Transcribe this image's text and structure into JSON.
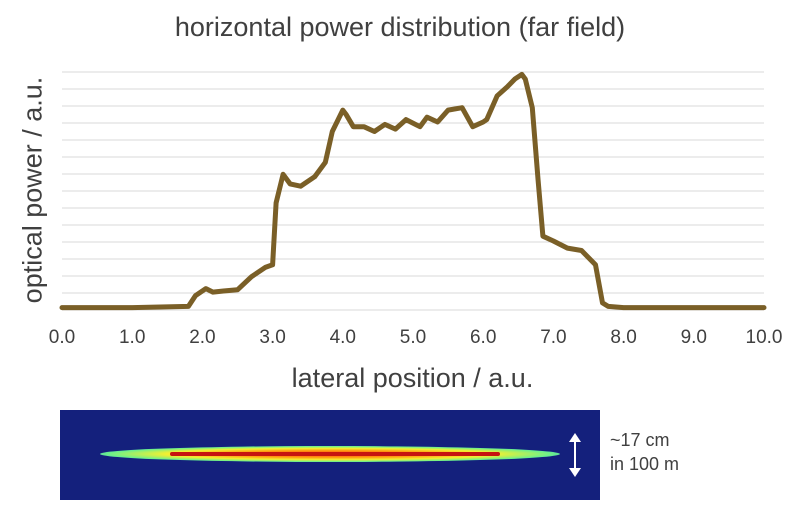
{
  "chart_data": {
    "type": "line",
    "title": "horizontal power distribution (far field)",
    "xlabel": "lateral position / a.u.",
    "ylabel": "optical power / a.u.",
    "xlim": [
      0,
      10
    ],
    "ylim": [
      0,
      100
    ],
    "xticks": [
      "0.0",
      "1.0",
      "2.0",
      "3.0",
      "4.0",
      "5.0",
      "6.0",
      "7.0",
      "8.0",
      "9.0",
      "10.0"
    ],
    "grid": true,
    "line_color": "#7a5f27",
    "series": [
      {
        "x": [
          0.0,
          1.0,
          1.8,
          1.9,
          2.05,
          2.15,
          2.3,
          2.5,
          2.7,
          2.9,
          3.0,
          3.05,
          3.15,
          3.25,
          3.4,
          3.6,
          3.75,
          3.85,
          4.0,
          4.05,
          4.15,
          4.3,
          4.45,
          4.6,
          4.75,
          4.9,
          5.1,
          5.2,
          5.35,
          5.5,
          5.7,
          5.85,
          6.0,
          6.05,
          6.2,
          6.35,
          6.45,
          6.55,
          6.6,
          6.7,
          6.78,
          6.85,
          7.0,
          7.2,
          7.4,
          7.6,
          7.7,
          7.78,
          8.0,
          9.0,
          10.0
        ],
        "y": [
          1,
          1,
          1.5,
          6,
          9,
          7.5,
          8,
          8.5,
          14,
          18,
          19,
          45,
          57,
          53,
          52,
          56,
          62,
          75,
          84,
          82,
          77,
          77,
          75,
          78,
          76,
          80,
          77,
          81,
          79,
          84,
          85,
          77,
          79,
          80,
          90,
          94,
          97,
          99,
          97,
          85,
          55,
          31,
          29,
          26,
          25,
          19,
          3,
          1.5,
          1,
          1,
          1
        ]
      }
    ]
  },
  "beam_image": {
    "annotation_line1": "~17 cm",
    "annotation_line2": "in 100 m",
    "background_color": "#14207c"
  }
}
